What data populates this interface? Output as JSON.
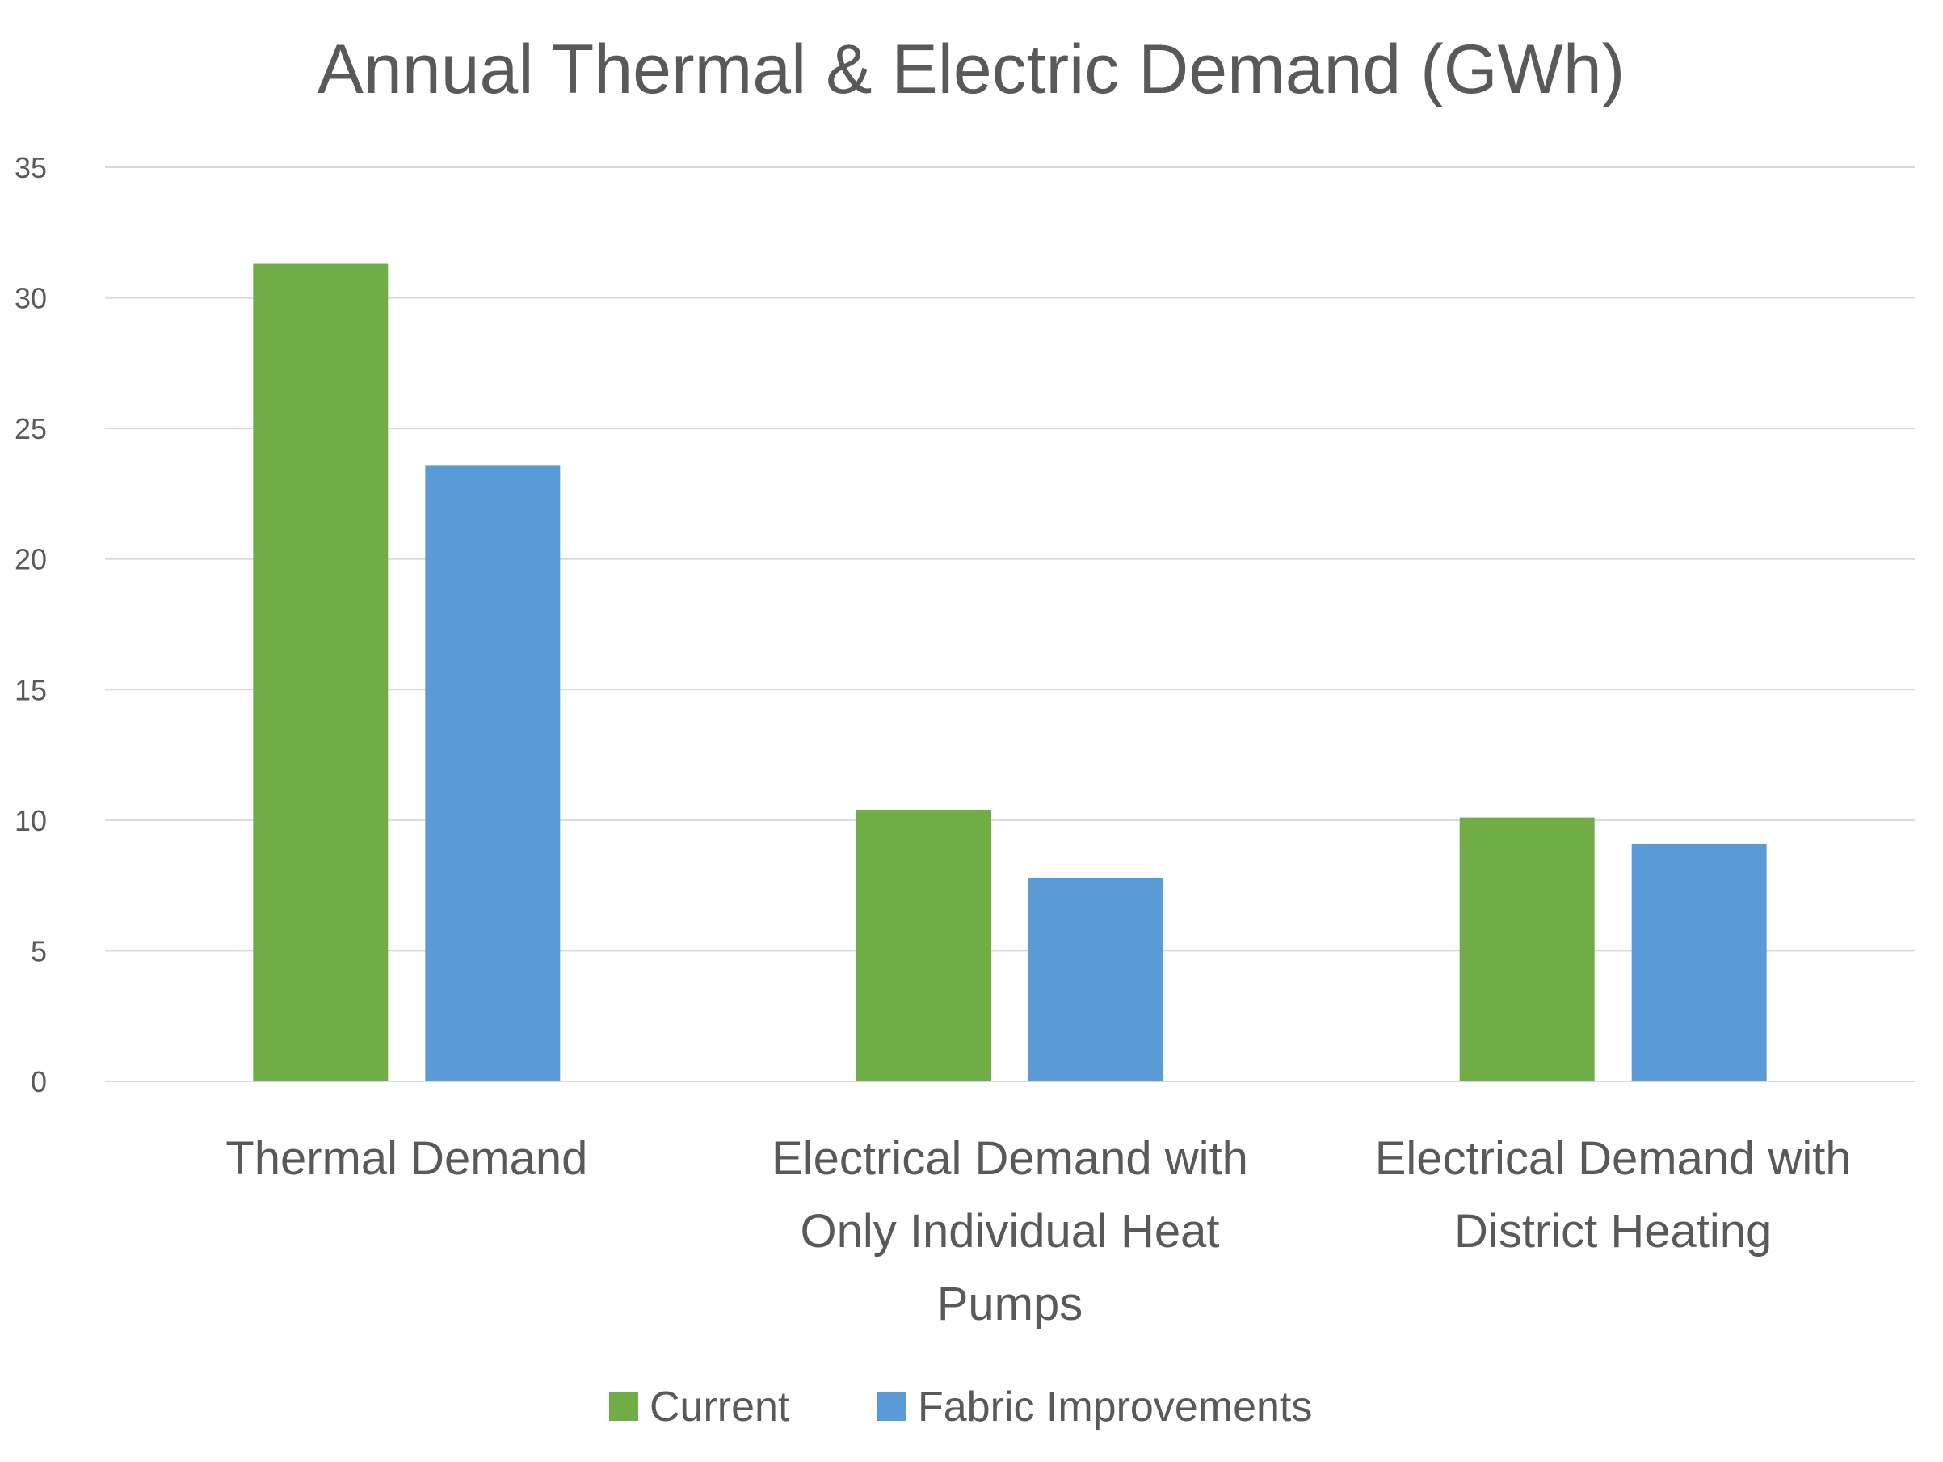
{
  "chart_data": {
    "type": "bar",
    "title": "Annual Thermal & Electric Demand (GWh)",
    "xlabel": "",
    "ylabel": "",
    "categories": [
      [
        "Thermal Demand"
      ],
      [
        "Electrical Demand with",
        "Only Individual Heat",
        "Pumps"
      ],
      [
        "Electrical Demand with",
        "District Heating"
      ]
    ],
    "series": [
      {
        "name": "Current",
        "color": "#70ad47",
        "values": [
          31.3,
          10.4,
          10.1
        ]
      },
      {
        "name": "Fabric Improvements",
        "color": "#5b9bd5",
        "values": [
          23.6,
          7.8,
          9.1
        ]
      }
    ],
    "ylim": [
      0,
      35
    ],
    "yticks": [
      0,
      5,
      10,
      15,
      20,
      25,
      30,
      35
    ],
    "grid": true,
    "legend": "bottom"
  }
}
